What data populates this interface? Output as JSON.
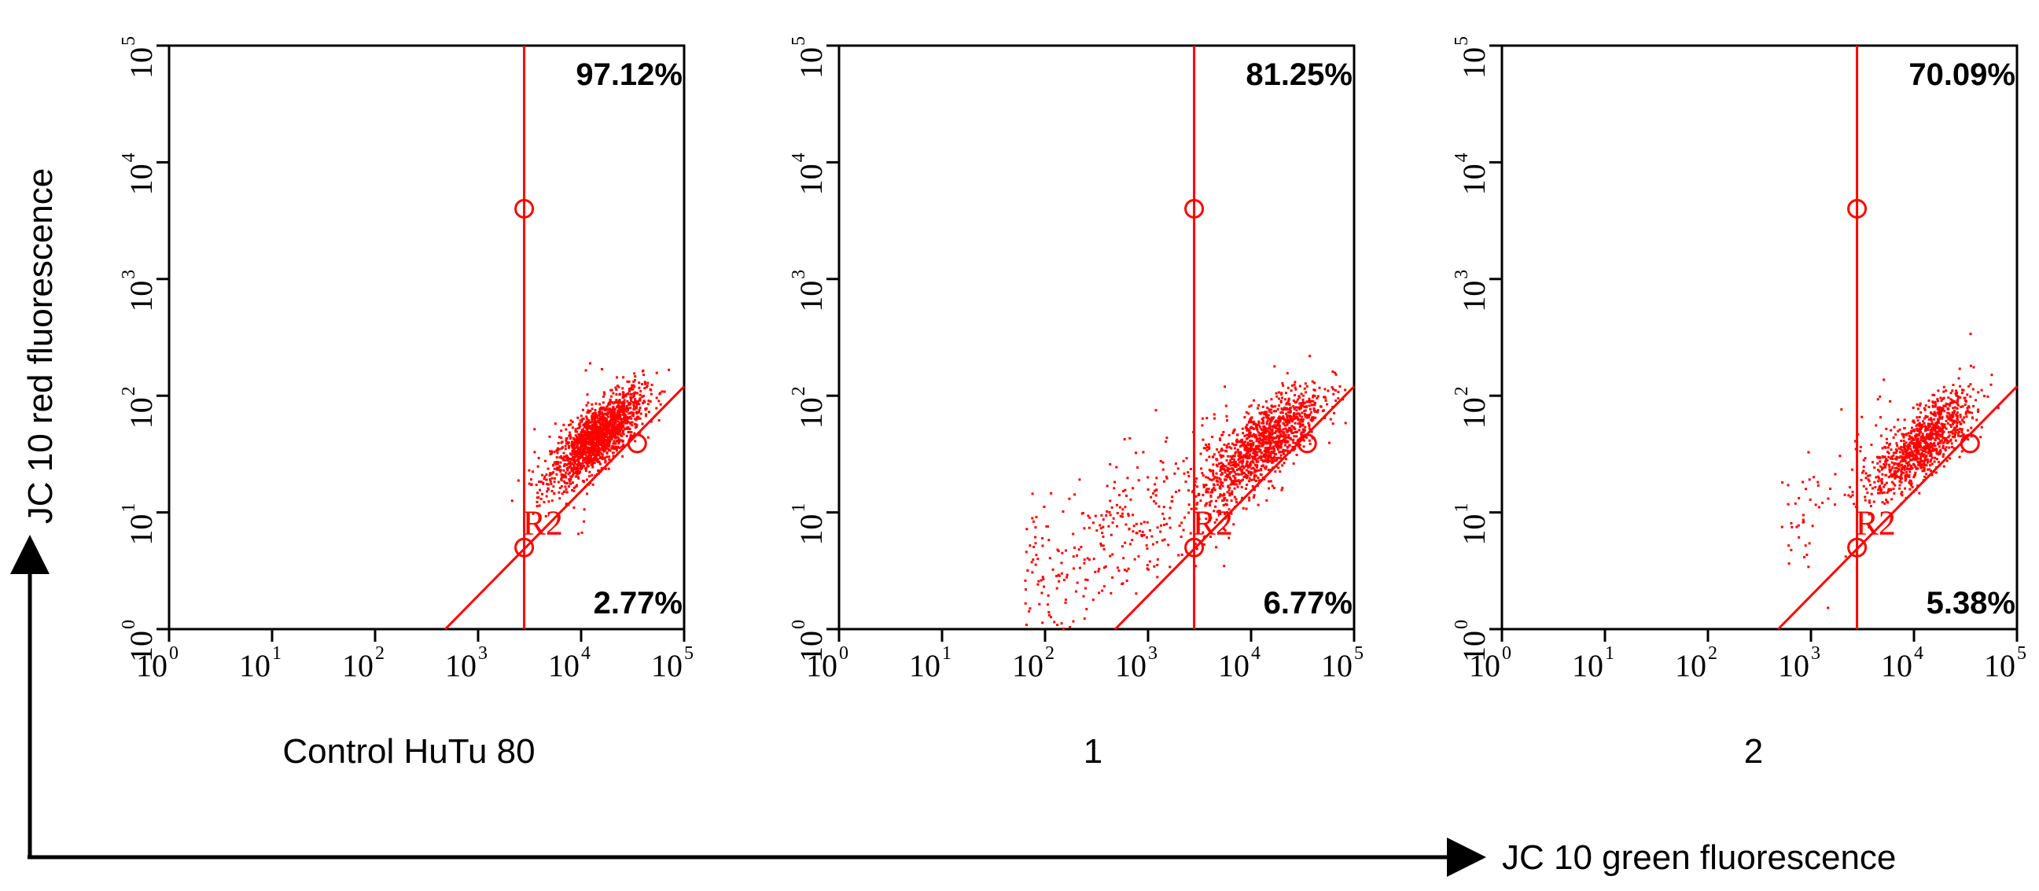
{
  "chart_data": {
    "type": "scatter",
    "x_axis_label": "JC 10 green fluorescence",
    "y_axis_label": "JC 10 red fluorescence",
    "x_scale": "log",
    "y_scale": "log",
    "xlim": [
      1,
      100000
    ],
    "ylim": [
      1,
      100000
    ],
    "tick_labels": [
      "10",
      "10",
      "10",
      "10",
      "10",
      "10"
    ],
    "tick_exponents": [
      "0",
      "1",
      "2",
      "3",
      "4",
      "5"
    ],
    "point_color": "#ff0000",
    "gate_color": "#ff0000",
    "region_label": "R2",
    "gate": {
      "vertical_x": 2800,
      "vertical_handle_y": 4000,
      "diagonal_from": [
        480,
        1
      ],
      "diagonal_to": [
        100000,
        120
      ]
    },
    "panels": [
      {
        "sample_label": "Control HuTu 80",
        "upper_pct": "97.12%",
        "lower_pct": "2.77%",
        "cluster_center": [
          14000,
          45
        ],
        "cluster_spread_log": [
          0.22,
          0.2
        ],
        "cluster_points": 1600,
        "tail_points": 40,
        "tail_range": [
          3000,
          20000
        ]
      },
      {
        "sample_label": "1",
        "upper_pct": "81.25%",
        "lower_pct": "6.77%",
        "cluster_center": [
          13000,
          40
        ],
        "cluster_spread_log": [
          0.28,
          0.25
        ],
        "cluster_points": 1200,
        "tail_points": 350,
        "tail_range": [
          60,
          6000
        ]
      },
      {
        "sample_label": "2",
        "upper_pct": "70.09%",
        "lower_pct": "5.38%",
        "cluster_center": [
          12000,
          40
        ],
        "cluster_spread_log": [
          0.24,
          0.22
        ],
        "cluster_points": 1000,
        "tail_points": 80,
        "tail_range": [
          500,
          6000
        ]
      }
    ]
  }
}
